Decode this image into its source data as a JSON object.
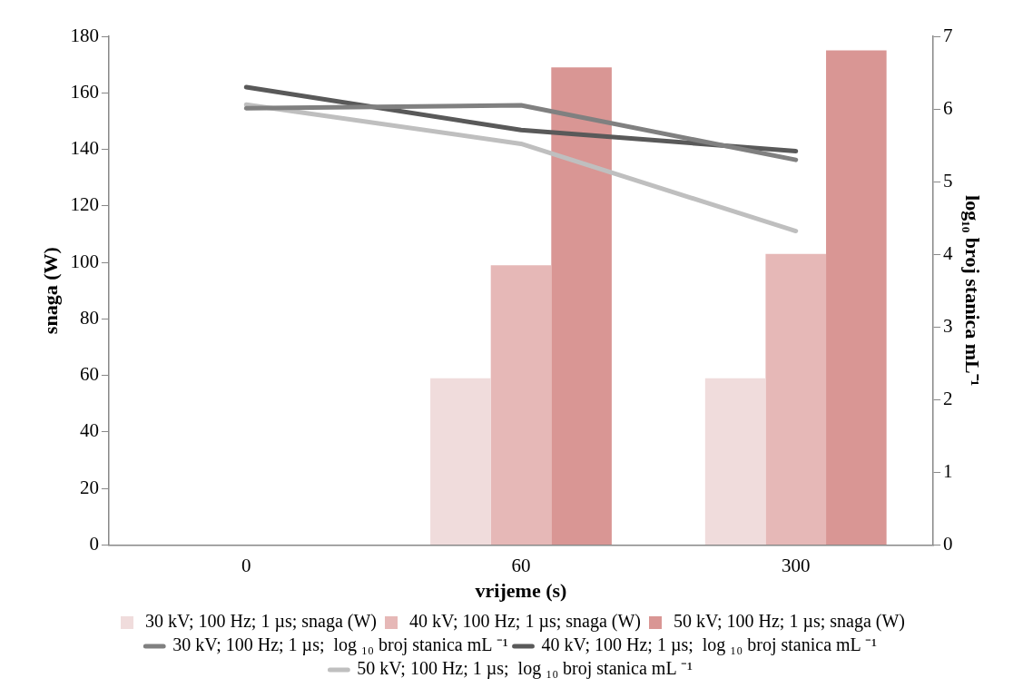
{
  "chart_data": {
    "type": "bar",
    "xlabel": "vrijeme (s)",
    "ylabel": "snaga (W)",
    "y2label": "log₁₀ broj stanica mL⁻¹",
    "categories": [
      "0",
      "60",
      "300"
    ],
    "series": [
      {
        "name": "30 kV; 100 Hz; 1 µs; snaga (W)",
        "color": "#f0dcdc",
        "values": [
          null,
          59,
          59
        ]
      },
      {
        "name": "40 kV; 100 Hz; 1 µs; snaga (W)",
        "color": "#e6b8b7",
        "values": [
          null,
          99,
          103
        ]
      },
      {
        "name": "50 kV; 100 Hz; 1 µs; snaga (W)",
        "color": "#d99694",
        "values": [
          null,
          169,
          175
        ]
      },
      {
        "name": "30 kV; 100 Hz; 1 µs;  log ₁₀ broj stanica mL ⁻¹",
        "type": "line",
        "axis": "y2",
        "color": "#808080",
        "values": [
          6.01,
          6.05,
          5.3
        ]
      },
      {
        "name": "40 kV; 100 Hz; 1 µs;  log ₁₀ broj stanica mL ⁻¹",
        "type": "line",
        "axis": "y2",
        "color": "#595959",
        "values": [
          6.3,
          5.71,
          5.42
        ]
      },
      {
        "name": "50 kV; 100 Hz; 1 µs;  log ₁₀ broj stanica mL ⁻¹",
        "type": "line",
        "axis": "y2",
        "color": "#bfbfbf",
        "values": [
          6.06,
          5.52,
          4.32
        ]
      }
    ],
    "ylim": [
      0,
      180
    ],
    "yticks": [
      0,
      20,
      40,
      60,
      80,
      100,
      120,
      140,
      160,
      180
    ],
    "y2lim": [
      0,
      7
    ],
    "y2ticks": [
      0,
      1,
      2,
      3,
      4,
      5,
      6,
      7
    ],
    "grid": false,
    "legend": "bottom",
    "marker": "none",
    "line_style": "solid"
  }
}
